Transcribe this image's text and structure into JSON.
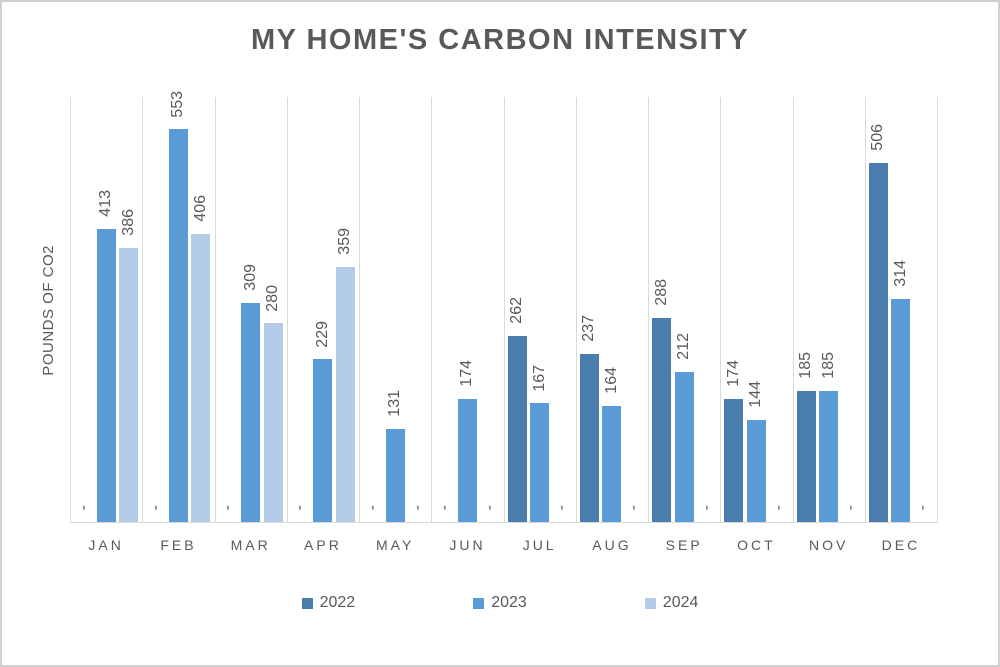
{
  "frame": {
    "background": "#FFFFFF",
    "border_color": "#CFCFCF",
    "gridline_color": "#D9D9D9",
    "text_color": "#595959"
  },
  "title": "MY HOME'S CARBON INTENSITY",
  "y_axis_title": "POUNDS OF CO2",
  "legend": {
    "position": "bottom",
    "items": [
      {
        "label": "2022",
        "color": "#4A7CAC"
      },
      {
        "label": "2023",
        "color": "#5B9BD5"
      },
      {
        "label": "2024",
        "color": "#B4CBE8"
      }
    ]
  },
  "chart_data": {
    "type": "bar",
    "title": "MY HOME'S CARBON INTENSITY",
    "xlabel": "",
    "ylabel": "POUNDS OF CO2",
    "categories": [
      "JAN",
      "FEB",
      "MAR",
      "APR",
      "MAY",
      "JUN",
      "JUL",
      "AUG",
      "SEP",
      "OCT",
      "NOV",
      "DEC"
    ],
    "series": [
      {
        "name": "2022",
        "color": "#4A7CAC",
        "values": [
          0,
          0,
          0,
          0,
          0,
          0,
          262,
          237,
          288,
          174,
          185,
          506
        ]
      },
      {
        "name": "2023",
        "color": "#5B9BD5",
        "values": [
          413,
          553,
          309,
          229,
          131,
          174,
          167,
          164,
          212,
          144,
          185,
          314
        ]
      },
      {
        "name": "2024",
        "color": "#B4CBE8",
        "values": [
          386,
          406,
          280,
          359,
          0,
          0,
          0,
          0,
          0,
          0,
          0,
          0
        ]
      }
    ],
    "ylim": [
      0,
      600
    ],
    "grid": "vertical-category-separators",
    "y_tick_labels_visible": false,
    "data_labels": true,
    "data_label_rotation": "bottom-to-top",
    "zero_label": "-",
    "legend_position": "bottom"
  }
}
